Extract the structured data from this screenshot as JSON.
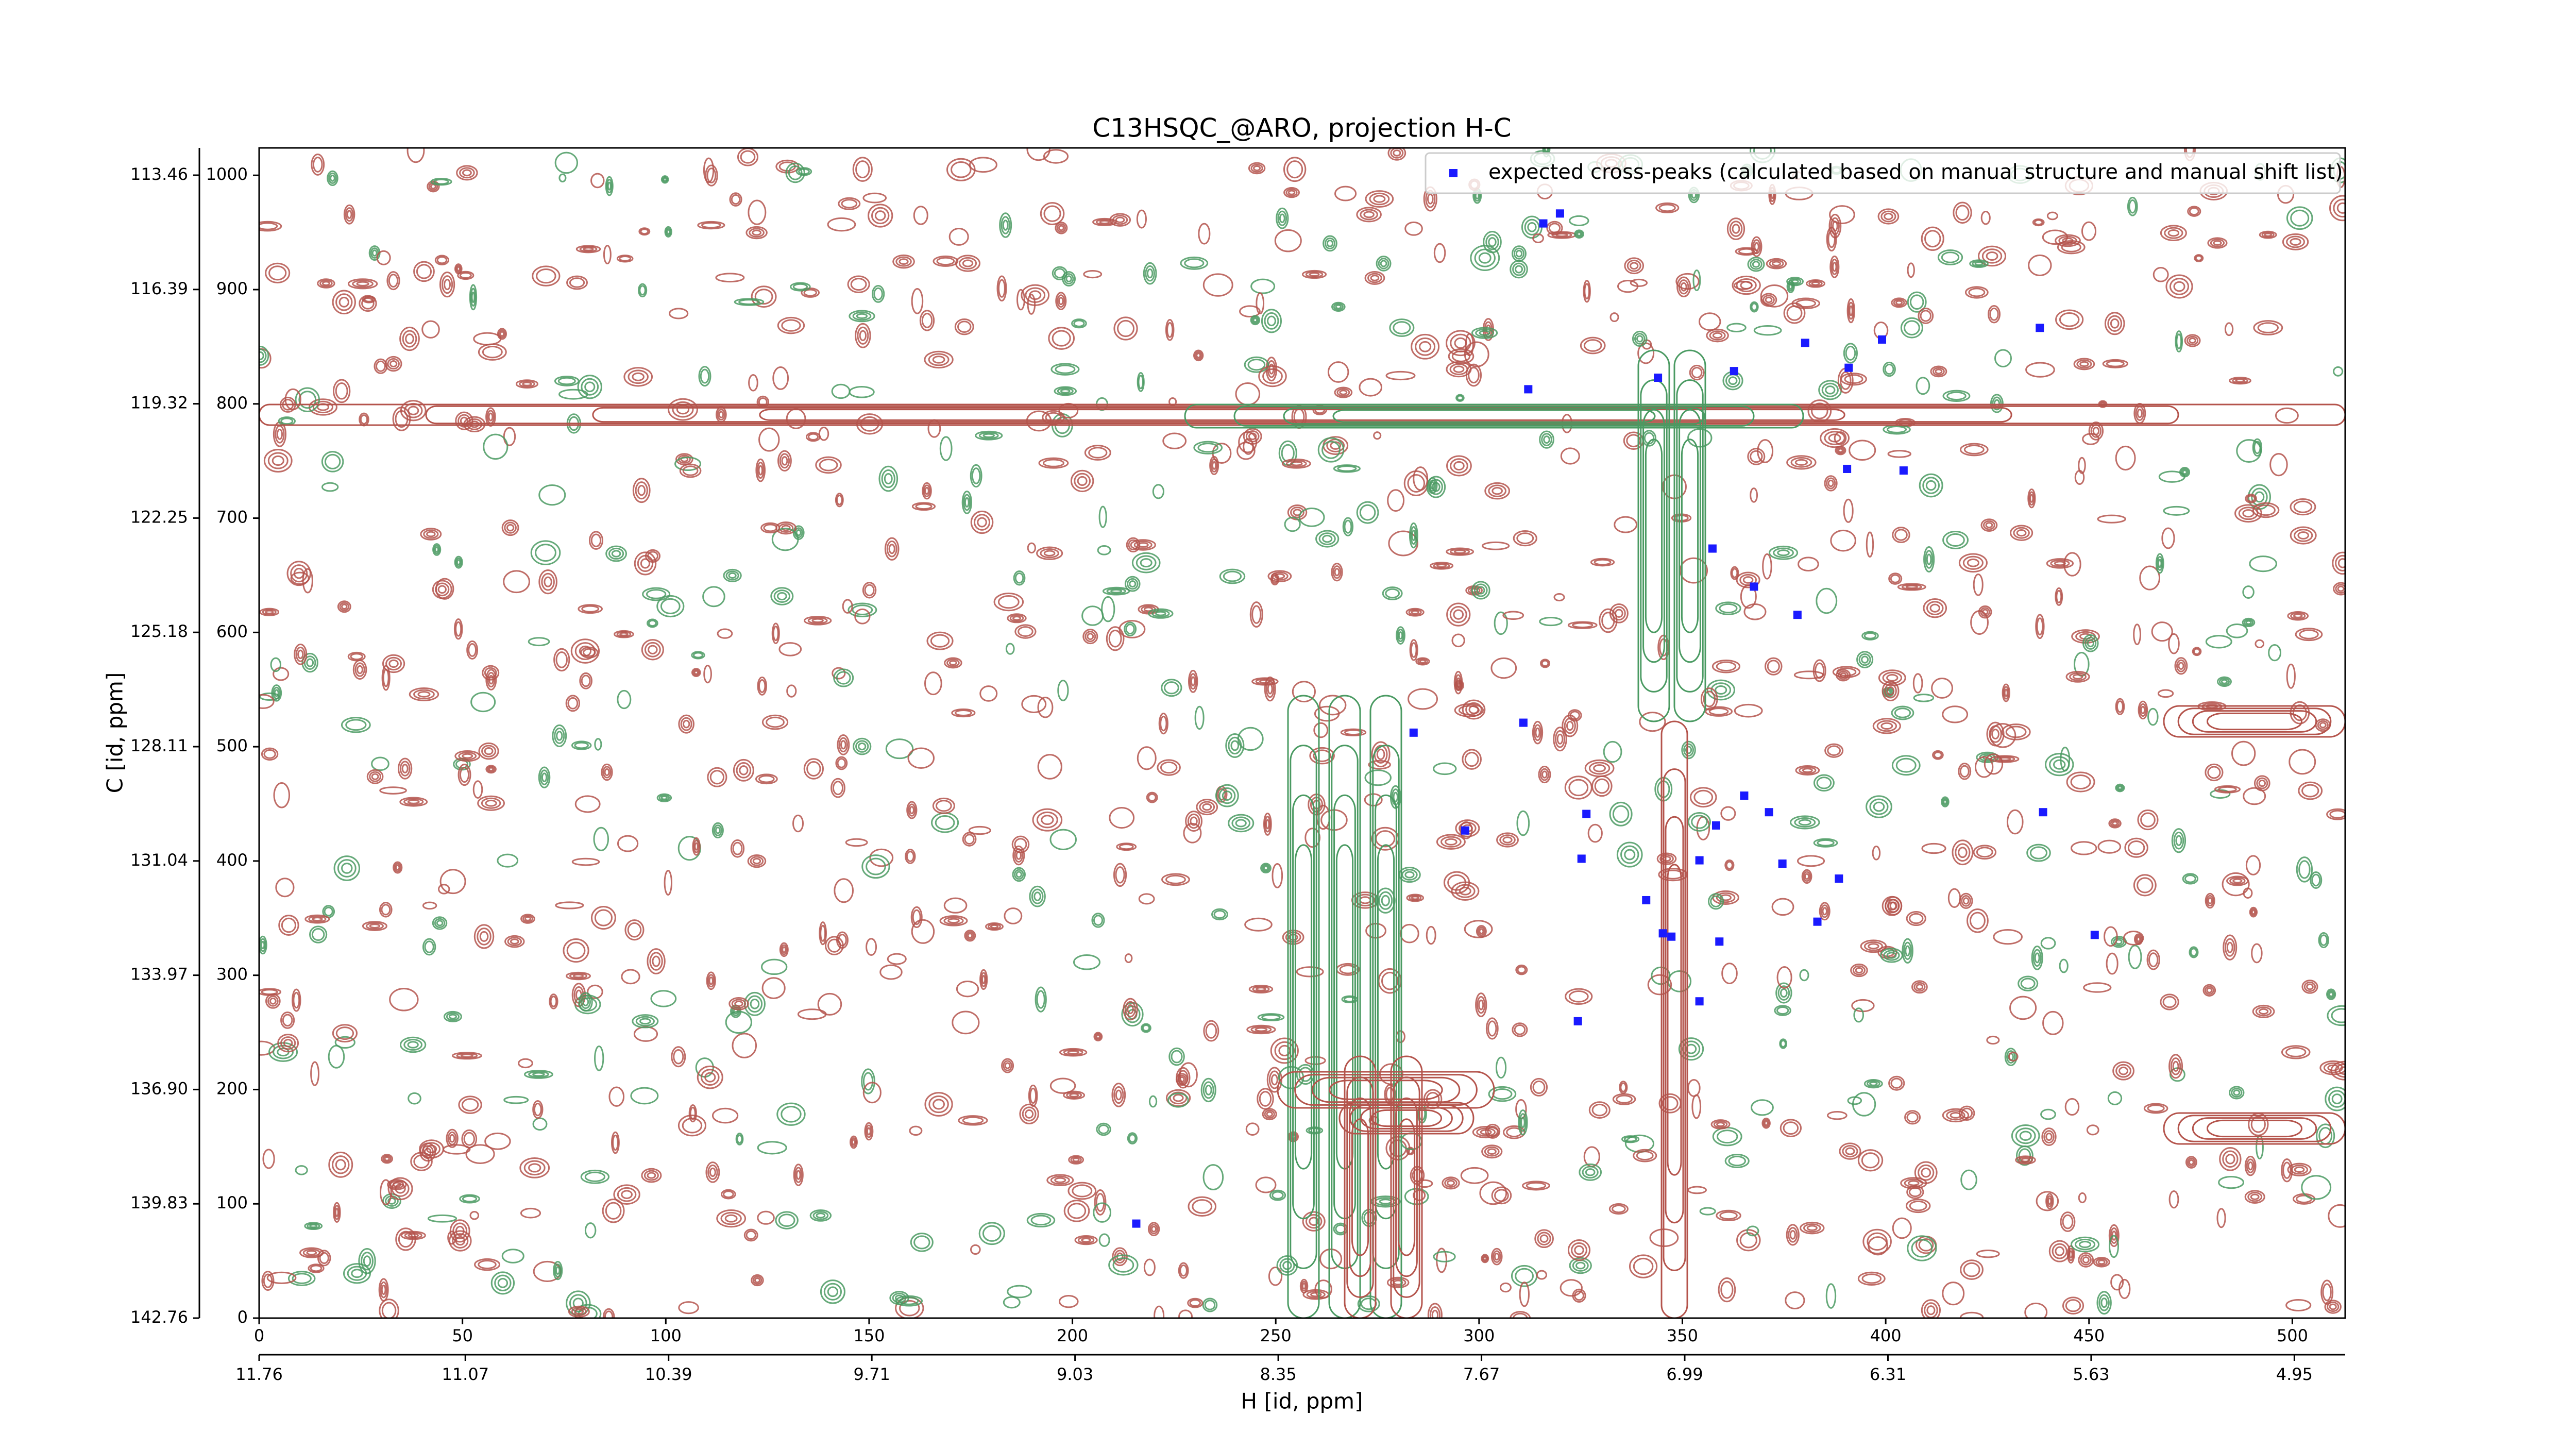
{
  "chart_data": {
    "type": "scatter",
    "title": "C13HSQC_@ARO, projection H-C",
    "xlabel": "H [id, ppm]",
    "ylabel": "C [id, ppm]",
    "xlim": [
      0,
      513
    ],
    "ylim": [
      0,
      1024
    ],
    "xticks": [
      0,
      50,
      100,
      150,
      200,
      250,
      300,
      350,
      400,
      450,
      500
    ],
    "yticks": [
      0,
      100,
      200,
      300,
      400,
      500,
      600,
      700,
      800,
      900,
      1000
    ],
    "x2lim": [
      11.76,
      4.78
    ],
    "x2ticks": [
      11.76,
      11.07,
      10.39,
      9.71,
      9.03,
      8.35,
      7.67,
      6.99,
      6.31,
      5.63,
      4.95
    ],
    "y2lim": [
      142.76,
      112.76
    ],
    "y2ticks": [
      142.76,
      139.83,
      {
        "value": 136.9,
        "label": "136.90"
      },
      133.97,
      131.04,
      128.11,
      125.18,
      122.25,
      119.32,
      116.39,
      113.46
    ],
    "legend": "upper right",
    "series": [
      {
        "name": "expected cross-peaks (calculated based on manual structure and manual shift list)",
        "color": "#1a1aff",
        "x": [
          319.9,
          315.8,
          312.1,
          344.0,
          362.7,
          380.2,
          399.1,
          390.9,
          437.9,
          390.5,
          404.4,
          357.4,
          367.6,
          378.3,
          283.9,
          310.9,
          296.6,
          326.4,
          365.2,
          371.3,
          358.3,
          325.2,
          354.2,
          374.6,
          388.5,
          438.7,
          341.1,
          345.2,
          347.3,
          359.1,
          383.2,
          451.4,
          354.2,
          324.3,
          215.7
        ],
        "values": [
          966.6,
          957.9,
          812.8,
          822.9,
          828.7,
          853.4,
          856.3,
          831.6,
          866.5,
          743.1,
          741.7,
          673.4,
          640.1,
          615.4,
          512.3,
          521.0,
          426.7,
          441.2,
          457.2,
          442.7,
          431.1,
          402.0,
          400.6,
          397.7,
          384.6,
          442.7,
          365.7,
          336.7,
          333.8,
          329.5,
          346.9,
          335.3,
          277.2,
          259.8,
          82.7
        ]
      }
    ]
  }
}
